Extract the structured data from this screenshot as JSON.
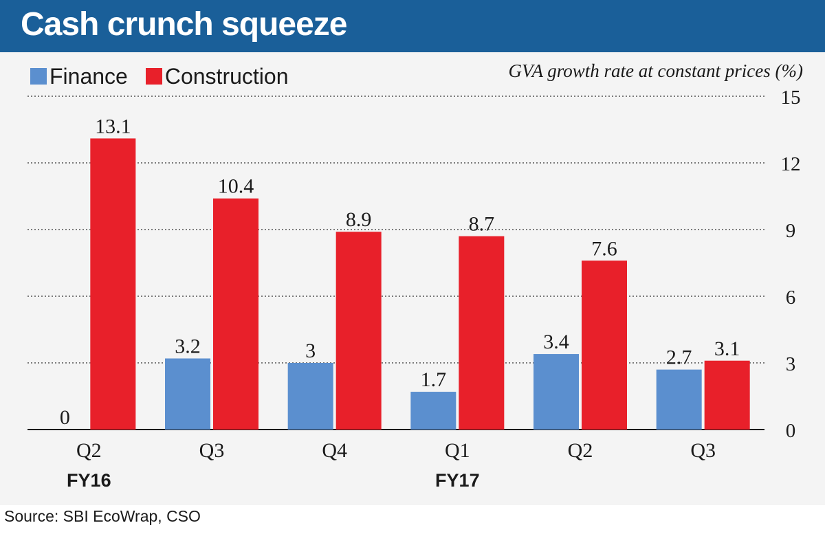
{
  "header": {
    "title": "Cash crunch squeeze",
    "colors": {
      "banner": "#1a5f99",
      "title_text": "#ffffff"
    }
  },
  "legend": [
    {
      "label": "Finance",
      "color": "#5b8fcf"
    },
    {
      "label": "Construction",
      "color": "#e8202a"
    }
  ],
  "unit_note": "GVA growth rate at constant prices (%)",
  "chart_data": {
    "type": "bar",
    "categories": [
      "Q2",
      "Q3",
      "Q4",
      "Q1",
      "Q2",
      "Q3"
    ],
    "groups": [
      {
        "label": "FY16",
        "category_index": 0
      },
      {
        "label": "FY17",
        "category_index": 3
      }
    ],
    "series": [
      {
        "name": "Finance",
        "values": [
          0,
          3.2,
          3,
          1.7,
          3.4,
          2.7
        ],
        "labels": [
          "0",
          "3.2",
          "3",
          "1.7",
          "3.4",
          "2.7"
        ],
        "color": "#5b8fcf"
      },
      {
        "name": "Construction",
        "values": [
          13.1,
          10.4,
          8.9,
          8.7,
          7.6,
          3.1
        ],
        "labels": [
          "13.1",
          "10.4",
          "8.9",
          "8.7",
          "7.6",
          "3.1"
        ],
        "color": "#e8202a"
      }
    ],
    "ylim": [
      0,
      15
    ],
    "yticks": [
      0,
      3,
      6,
      9,
      12,
      15
    ],
    "ytick_labels": [
      "0",
      "3",
      "6",
      "9",
      "12",
      "15"
    ],
    "y_axis_side": "right",
    "grid": "horizontal dotted"
  },
  "source": "Source: SBI EcoWrap, CSO"
}
